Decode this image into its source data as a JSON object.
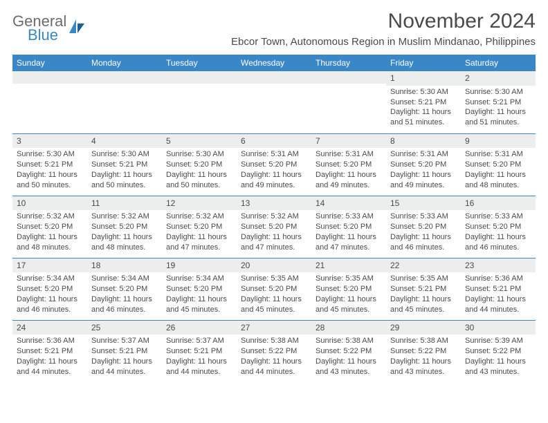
{
  "brand": {
    "top": "General",
    "bottom": "Blue",
    "accent_color": "#3a87c7"
  },
  "title": "November 2024",
  "location": "Ebcor Town, Autonomous Region in Muslim Mindanao, Philippines",
  "colors": {
    "header_bg": "#3a87c7",
    "header_text": "#ffffff",
    "daynum_bg": "#eceded",
    "text": "#4a4a4a",
    "row_divider": "#3a87c7",
    "page_bg": "#ffffff"
  },
  "typography": {
    "title_fontsize": 30,
    "location_fontsize": 15,
    "header_fontsize": 12,
    "daynum_fontsize": 12,
    "body_fontsize": 11
  },
  "day_headers": [
    "Sunday",
    "Monday",
    "Tuesday",
    "Wednesday",
    "Thursday",
    "Friday",
    "Saturday"
  ],
  "weeks": [
    [
      {
        "num": "",
        "lines": []
      },
      {
        "num": "",
        "lines": []
      },
      {
        "num": "",
        "lines": []
      },
      {
        "num": "",
        "lines": []
      },
      {
        "num": "",
        "lines": []
      },
      {
        "num": "1",
        "lines": [
          "Sunrise: 5:30 AM",
          "Sunset: 5:21 PM",
          "Daylight: 11 hours and 51 minutes."
        ]
      },
      {
        "num": "2",
        "lines": [
          "Sunrise: 5:30 AM",
          "Sunset: 5:21 PM",
          "Daylight: 11 hours and 51 minutes."
        ]
      }
    ],
    [
      {
        "num": "3",
        "lines": [
          "Sunrise: 5:30 AM",
          "Sunset: 5:21 PM",
          "Daylight: 11 hours and 50 minutes."
        ]
      },
      {
        "num": "4",
        "lines": [
          "Sunrise: 5:30 AM",
          "Sunset: 5:21 PM",
          "Daylight: 11 hours and 50 minutes."
        ]
      },
      {
        "num": "5",
        "lines": [
          "Sunrise: 5:30 AM",
          "Sunset: 5:20 PM",
          "Daylight: 11 hours and 50 minutes."
        ]
      },
      {
        "num": "6",
        "lines": [
          "Sunrise: 5:31 AM",
          "Sunset: 5:20 PM",
          "Daylight: 11 hours and 49 minutes."
        ]
      },
      {
        "num": "7",
        "lines": [
          "Sunrise: 5:31 AM",
          "Sunset: 5:20 PM",
          "Daylight: 11 hours and 49 minutes."
        ]
      },
      {
        "num": "8",
        "lines": [
          "Sunrise: 5:31 AM",
          "Sunset: 5:20 PM",
          "Daylight: 11 hours and 49 minutes."
        ]
      },
      {
        "num": "9",
        "lines": [
          "Sunrise: 5:31 AM",
          "Sunset: 5:20 PM",
          "Daylight: 11 hours and 48 minutes."
        ]
      }
    ],
    [
      {
        "num": "10",
        "lines": [
          "Sunrise: 5:32 AM",
          "Sunset: 5:20 PM",
          "Daylight: 11 hours and 48 minutes."
        ]
      },
      {
        "num": "11",
        "lines": [
          "Sunrise: 5:32 AM",
          "Sunset: 5:20 PM",
          "Daylight: 11 hours and 48 minutes."
        ]
      },
      {
        "num": "12",
        "lines": [
          "Sunrise: 5:32 AM",
          "Sunset: 5:20 PM",
          "Daylight: 11 hours and 47 minutes."
        ]
      },
      {
        "num": "13",
        "lines": [
          "Sunrise: 5:32 AM",
          "Sunset: 5:20 PM",
          "Daylight: 11 hours and 47 minutes."
        ]
      },
      {
        "num": "14",
        "lines": [
          "Sunrise: 5:33 AM",
          "Sunset: 5:20 PM",
          "Daylight: 11 hours and 47 minutes."
        ]
      },
      {
        "num": "15",
        "lines": [
          "Sunrise: 5:33 AM",
          "Sunset: 5:20 PM",
          "Daylight: 11 hours and 46 minutes."
        ]
      },
      {
        "num": "16",
        "lines": [
          "Sunrise: 5:33 AM",
          "Sunset: 5:20 PM",
          "Daylight: 11 hours and 46 minutes."
        ]
      }
    ],
    [
      {
        "num": "17",
        "lines": [
          "Sunrise: 5:34 AM",
          "Sunset: 5:20 PM",
          "Daylight: 11 hours and 46 minutes."
        ]
      },
      {
        "num": "18",
        "lines": [
          "Sunrise: 5:34 AM",
          "Sunset: 5:20 PM",
          "Daylight: 11 hours and 46 minutes."
        ]
      },
      {
        "num": "19",
        "lines": [
          "Sunrise: 5:34 AM",
          "Sunset: 5:20 PM",
          "Daylight: 11 hours and 45 minutes."
        ]
      },
      {
        "num": "20",
        "lines": [
          "Sunrise: 5:35 AM",
          "Sunset: 5:20 PM",
          "Daylight: 11 hours and 45 minutes."
        ]
      },
      {
        "num": "21",
        "lines": [
          "Sunrise: 5:35 AM",
          "Sunset: 5:20 PM",
          "Daylight: 11 hours and 45 minutes."
        ]
      },
      {
        "num": "22",
        "lines": [
          "Sunrise: 5:35 AM",
          "Sunset: 5:21 PM",
          "Daylight: 11 hours and 45 minutes."
        ]
      },
      {
        "num": "23",
        "lines": [
          "Sunrise: 5:36 AM",
          "Sunset: 5:21 PM",
          "Daylight: 11 hours and 44 minutes."
        ]
      }
    ],
    [
      {
        "num": "24",
        "lines": [
          "Sunrise: 5:36 AM",
          "Sunset: 5:21 PM",
          "Daylight: 11 hours and 44 minutes."
        ]
      },
      {
        "num": "25",
        "lines": [
          "Sunrise: 5:37 AM",
          "Sunset: 5:21 PM",
          "Daylight: 11 hours and 44 minutes."
        ]
      },
      {
        "num": "26",
        "lines": [
          "Sunrise: 5:37 AM",
          "Sunset: 5:21 PM",
          "Daylight: 11 hours and 44 minutes."
        ]
      },
      {
        "num": "27",
        "lines": [
          "Sunrise: 5:38 AM",
          "Sunset: 5:22 PM",
          "Daylight: 11 hours and 44 minutes."
        ]
      },
      {
        "num": "28",
        "lines": [
          "Sunrise: 5:38 AM",
          "Sunset: 5:22 PM",
          "Daylight: 11 hours and 43 minutes."
        ]
      },
      {
        "num": "29",
        "lines": [
          "Sunrise: 5:38 AM",
          "Sunset: 5:22 PM",
          "Daylight: 11 hours and 43 minutes."
        ]
      },
      {
        "num": "30",
        "lines": [
          "Sunrise: 5:39 AM",
          "Sunset: 5:22 PM",
          "Daylight: 11 hours and 43 minutes."
        ]
      }
    ]
  ]
}
